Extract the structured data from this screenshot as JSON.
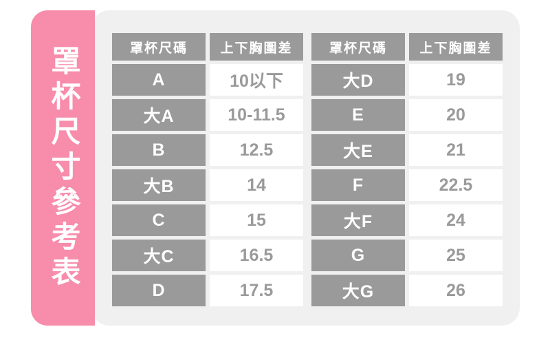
{
  "banner": {
    "title": "罩杯尺寸參考表"
  },
  "tables": [
    {
      "headers": [
        "罩杯尺碼",
        "上下胸圍差"
      ],
      "rows": [
        {
          "size": "A",
          "diff": "10以下"
        },
        {
          "size": "大A",
          "diff": "10-11.5"
        },
        {
          "size": "B",
          "diff": "12.5"
        },
        {
          "size": "大B",
          "diff": "14"
        },
        {
          "size": "C",
          "diff": "15"
        },
        {
          "size": "大C",
          "diff": "16.5"
        },
        {
          "size": "D",
          "diff": "17.5"
        }
      ]
    },
    {
      "headers": [
        "罩杯尺碼",
        "上下胸圍差"
      ],
      "rows": [
        {
          "size": "大D",
          "diff": "19"
        },
        {
          "size": "E",
          "diff": "20"
        },
        {
          "size": "大E",
          "diff": "21"
        },
        {
          "size": "F",
          "diff": "22.5"
        },
        {
          "size": "大F",
          "diff": "24"
        },
        {
          "size": "G",
          "diff": "25"
        },
        {
          "size": "大G",
          "diff": "26"
        }
      ]
    }
  ],
  "chart_data": {
    "type": "table",
    "title": "罩杯尺寸參考表",
    "columns": [
      "罩杯尺碼",
      "上下胸圍差"
    ],
    "rows": [
      [
        "A",
        "10以下"
      ],
      [
        "大A",
        "10-11.5"
      ],
      [
        "B",
        "12.5"
      ],
      [
        "大B",
        "14"
      ],
      [
        "C",
        "15"
      ],
      [
        "大C",
        "16.5"
      ],
      [
        "D",
        "17.5"
      ],
      [
        "大D",
        "19"
      ],
      [
        "E",
        "20"
      ],
      [
        "大E",
        "21"
      ],
      [
        "F",
        "22.5"
      ],
      [
        "大F",
        "24"
      ],
      [
        "G",
        "25"
      ],
      [
        "大G",
        "26"
      ]
    ],
    "layout": "two side-by-side 2-column tables, 7 data rows each, header row repeated"
  },
  "colors": {
    "banner_pink": "#f78cab",
    "cell_gray": "#9a9a9a",
    "panel_gray": "#f0f0f0",
    "cell_white": "#ffffff"
  }
}
